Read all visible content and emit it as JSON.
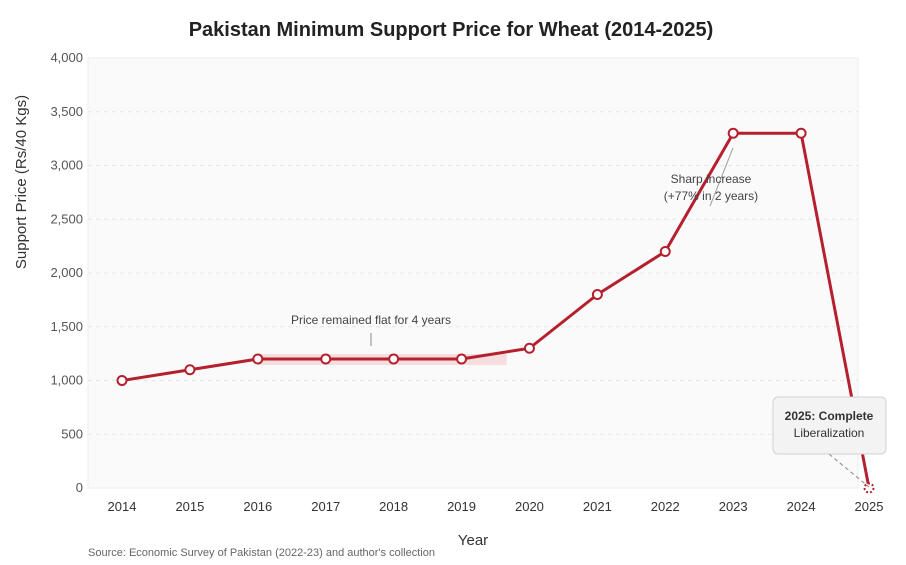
{
  "chart_data": {
    "type": "line",
    "title": "Pakistan Minimum Support Price for Wheat (2014-2025)",
    "xlabel": "Year",
    "ylabel": "Support Price (Rs/40 Kgs)",
    "categories": [
      "2014",
      "2015",
      "2016",
      "2017",
      "2018",
      "2019",
      "2020",
      "2021",
      "2022",
      "2023",
      "2024",
      "2025"
    ],
    "series": [
      {
        "values": [
          1000,
          1100,
          1200,
          1200,
          1200,
          1200,
          1300,
          1800,
          2200,
          3300,
          3300,
          0
        ]
      }
    ],
    "ylim": [
      0,
      4000
    ],
    "yticks": [
      "0",
      "500",
      "1,000",
      "1,500",
      "2,000",
      "2,500",
      "3,000",
      "3,500",
      "4,000"
    ],
    "grid": true,
    "legend": "none",
    "line_color": "#b5202e",
    "annotations": {
      "flat": "Price remained flat for 4 years",
      "sharp_line1": "Sharp increase",
      "sharp_line2": "(+77% in 2 years)",
      "liberal_line1": "2025: Complete",
      "liberal_line2": "Liberalization"
    },
    "source": "Source: Economic Survey of Pakistan (2022-23) and author's collection"
  }
}
